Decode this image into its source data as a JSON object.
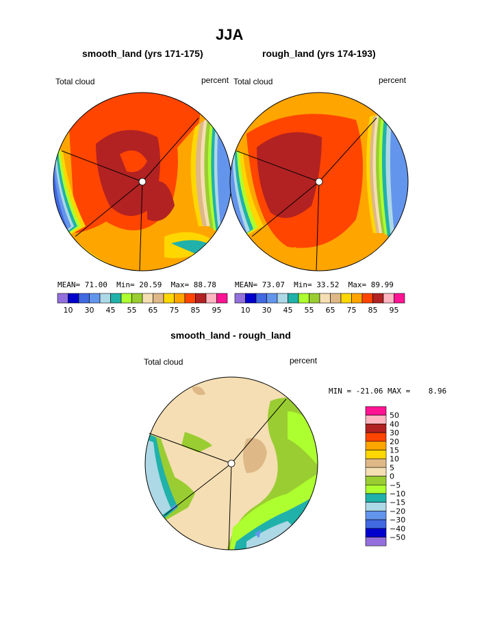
{
  "page": {
    "title": "JJA",
    "diff_title": "smooth_land - rough_land"
  },
  "chart_data": [
    {
      "type": "heatmap",
      "title": "smooth_land (yrs 171-175)",
      "left_label": "Total cloud",
      "right_label": "percent",
      "stats": {
        "mean_label": "MEAN=",
        "mean": "71.00",
        "min_label": "Min=",
        "min": "20.59",
        "max_label": "Max=",
        "max": "88.78"
      },
      "levels": [
        10,
        20,
        30,
        40,
        45,
        50,
        55,
        60,
        65,
        70,
        75,
        80,
        85,
        90,
        95
      ],
      "tick_labels": [
        "10",
        "30",
        "45",
        "55",
        "65",
        "75",
        "85",
        "95"
      ],
      "colors": [
        "#9370db",
        "#0000cd",
        "#4169e1",
        "#6495ed",
        "#add8e6",
        "#20b2aa",
        "#adff2f",
        "#9acd32",
        "#f5deb3",
        "#deb887",
        "#ffd700",
        "#ffa500",
        "#ff4500",
        "#b22222",
        "#ffb6c1",
        "#ff1493"
      ]
    },
    {
      "type": "heatmap",
      "title": "rough_land (yrs 174-193)",
      "left_label": "Total cloud",
      "right_label": "percent",
      "stats": {
        "mean_label": "MEAN=",
        "mean": "73.07",
        "min_label": "Min=",
        "min": "33.52",
        "max_label": "Max=",
        "max": "89.99"
      },
      "levels": [
        10,
        20,
        30,
        40,
        45,
        50,
        55,
        60,
        65,
        70,
        75,
        80,
        85,
        90,
        95
      ],
      "tick_labels": [
        "10",
        "30",
        "45",
        "55",
        "65",
        "75",
        "85",
        "95"
      ],
      "colors": [
        "#9370db",
        "#0000cd",
        "#4169e1",
        "#6495ed",
        "#add8e6",
        "#20b2aa",
        "#adff2f",
        "#9acd32",
        "#f5deb3",
        "#deb887",
        "#ffd700",
        "#ffa500",
        "#ff4500",
        "#b22222",
        "#ffb6c1",
        "#ff1493"
      ]
    },
    {
      "type": "heatmap",
      "title": "smooth_land - rough_land",
      "left_label": "Total cloud",
      "right_label": "percent",
      "stats": {
        "text": "MIN = -21.06 MAX =    8.96"
      },
      "tick_labels": [
        "50",
        "40",
        "30",
        "20",
        "15",
        "10",
        "5",
        "0",
        "−5",
        "−10",
        "−15",
        "−20",
        "−30",
        "−40",
        "−50"
      ],
      "colors": [
        "#ff1493",
        "#ffb6c1",
        "#b22222",
        "#ff4500",
        "#ffa500",
        "#ffd700",
        "#deb887",
        "#f5deb3",
        "#9acd32",
        "#adff2f",
        "#20b2aa",
        "#add8e6",
        "#6495ed",
        "#4169e1",
        "#0000cd",
        "#9370db"
      ]
    }
  ]
}
